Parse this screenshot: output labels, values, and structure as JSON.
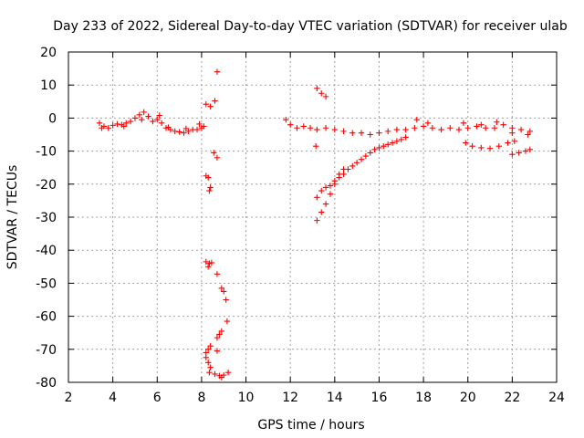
{
  "chart_data": {
    "type": "scatter",
    "title": "Day 233 of 2022, Sidereal Day-to-day VTEC variation (SDTVAR) for receiver ulab",
    "xlabel": "GPS time / hours",
    "ylabel": "SDTVAR / TECUs",
    "xlim": [
      2,
      24
    ],
    "ylim": [
      -80,
      20
    ],
    "xticks": [
      2,
      4,
      6,
      8,
      10,
      12,
      14,
      16,
      18,
      20,
      22,
      24
    ],
    "yticks": [
      20,
      10,
      0,
      -10,
      -20,
      -30,
      -40,
      -50,
      -60,
      -70,
      -80
    ],
    "grid": true,
    "marker": "+",
    "color": "#ff0000",
    "series": [
      {
        "name": "SDTVAR",
        "points": [
          [
            3.4,
            -1.5
          ],
          [
            3.6,
            -2.5
          ],
          [
            3.8,
            -3
          ],
          [
            4.0,
            -2.2
          ],
          [
            4.2,
            -1.8
          ],
          [
            4.4,
            -2
          ],
          [
            4.6,
            -1.5
          ],
          [
            4.8,
            -1
          ],
          [
            5.0,
            0
          ],
          [
            5.2,
            1
          ],
          [
            5.4,
            1.8
          ],
          [
            5.6,
            0.5
          ],
          [
            5.8,
            -1
          ],
          [
            6.0,
            -0.5
          ],
          [
            6.2,
            -1.5
          ],
          [
            6.4,
            -3
          ],
          [
            6.6,
            -3.5
          ],
          [
            6.8,
            -4
          ],
          [
            7.0,
            -4.2
          ],
          [
            7.2,
            -4.5
          ],
          [
            7.4,
            -4
          ],
          [
            7.6,
            -3.5
          ],
          [
            7.8,
            -3.5
          ],
          [
            8.0,
            -3
          ],
          [
            8.1,
            -2.5
          ],
          [
            3.5,
            -3
          ],
          [
            4.5,
            -2.5
          ],
          [
            5.3,
            -0.5
          ],
          [
            6.1,
            0.8
          ],
          [
            6.5,
            -2.8
          ],
          [
            7.3,
            -3.2
          ],
          [
            7.9,
            -1.8
          ],
          [
            8.2,
            4.2
          ],
          [
            8.4,
            3.5
          ],
          [
            8.6,
            5.2
          ],
          [
            8.7,
            14
          ],
          [
            8.55,
            -10.5
          ],
          [
            8.7,
            -12
          ],
          [
            8.2,
            -17.5
          ],
          [
            8.3,
            -18
          ],
          [
            8.4,
            -21
          ],
          [
            8.35,
            -22
          ],
          [
            8.2,
            -43.5
          ],
          [
            8.35,
            -44
          ],
          [
            8.45,
            -43.8
          ],
          [
            8.3,
            -45
          ],
          [
            8.7,
            -47.2
          ],
          [
            8.9,
            -51.5
          ],
          [
            9.0,
            -52.5
          ],
          [
            9.1,
            -55
          ],
          [
            9.15,
            -61.5
          ],
          [
            8.8,
            -65.5
          ],
          [
            8.7,
            -66.5
          ],
          [
            8.9,
            -64.5
          ],
          [
            8.2,
            -71
          ],
          [
            8.3,
            -70
          ],
          [
            8.4,
            -69
          ],
          [
            8.2,
            -72.5
          ],
          [
            8.7,
            -70.5
          ],
          [
            8.3,
            -74
          ],
          [
            8.4,
            -75.5
          ],
          [
            8.35,
            -77
          ],
          [
            8.6,
            -77.5
          ],
          [
            8.8,
            -78
          ],
          [
            9.0,
            -77.8
          ],
          [
            9.2,
            -77
          ],
          [
            8.9,
            -78.5
          ],
          [
            11.8,
            -0.5
          ],
          [
            12.0,
            -2
          ],
          [
            12.3,
            -3
          ],
          [
            12.6,
            -2.5
          ],
          [
            12.9,
            -3
          ],
          [
            13.2,
            -3.5
          ],
          [
            13.6,
            -3
          ],
          [
            14.0,
            -3.5
          ],
          [
            14.4,
            -4
          ],
          [
            14.8,
            -4.5
          ],
          [
            15.2,
            -4.5
          ],
          [
            15.6,
            -5
          ],
          [
            16.0,
            -4.5
          ],
          [
            16.4,
            -4
          ],
          [
            16.8,
            -3.5
          ],
          [
            17.2,
            -3.5
          ],
          [
            17.6,
            -3
          ],
          [
            18.0,
            -2.5
          ],
          [
            18.4,
            -3
          ],
          [
            18.8,
            -3.5
          ],
          [
            19.2,
            -3
          ],
          [
            19.6,
            -3.5
          ],
          [
            20.0,
            -3
          ],
          [
            20.4,
            -2.5
          ],
          [
            20.8,
            -3
          ],
          [
            21.2,
            -3
          ],
          [
            21.6,
            -2
          ],
          [
            22.0,
            -3
          ],
          [
            22.4,
            -3.5
          ],
          [
            22.8,
            -4
          ],
          [
            17.7,
            -0.5
          ],
          [
            18.2,
            -1.5
          ],
          [
            19.8,
            -1.5
          ],
          [
            20.6,
            -2
          ],
          [
            21.3,
            -1.2
          ],
          [
            22.0,
            -4.5
          ],
          [
            22.7,
            -5
          ],
          [
            13.2,
            9
          ],
          [
            13.4,
            7.5
          ],
          [
            13.6,
            6.5
          ],
          [
            13.15,
            -8.5
          ],
          [
            13.2,
            -31
          ],
          [
            13.4,
            -28.5
          ],
          [
            13.6,
            -26
          ],
          [
            13.8,
            -23
          ],
          [
            14.0,
            -20
          ],
          [
            14.2,
            -18
          ],
          [
            14.4,
            -17
          ],
          [
            14.6,
            -15.5
          ],
          [
            14.8,
            -14.5
          ],
          [
            15.0,
            -13.5
          ],
          [
            15.2,
            -12.5
          ],
          [
            15.4,
            -11.5
          ],
          [
            15.6,
            -10.5
          ],
          [
            15.8,
            -9.5
          ],
          [
            16.0,
            -9
          ],
          [
            16.2,
            -8.5
          ],
          [
            16.4,
            -8
          ],
          [
            16.6,
            -7.5
          ],
          [
            16.8,
            -7
          ],
          [
            17.0,
            -6.5
          ],
          [
            17.2,
            -5.8
          ],
          [
            13.2,
            -24
          ],
          [
            13.4,
            -22
          ],
          [
            13.6,
            -21
          ],
          [
            13.8,
            -20.5
          ],
          [
            14.0,
            -19
          ],
          [
            14.2,
            -17
          ],
          [
            14.4,
            -15.5
          ],
          [
            19.9,
            -7.5
          ],
          [
            20.2,
            -8.5
          ],
          [
            20.6,
            -9
          ],
          [
            21.0,
            -9.2
          ],
          [
            21.4,
            -8.5
          ],
          [
            21.8,
            -7.5
          ],
          [
            22.1,
            -7
          ],
          [
            22.0,
            -11
          ],
          [
            22.3,
            -10.5
          ],
          [
            22.6,
            -10
          ],
          [
            22.8,
            -9.5
          ]
        ]
      }
    ]
  }
}
